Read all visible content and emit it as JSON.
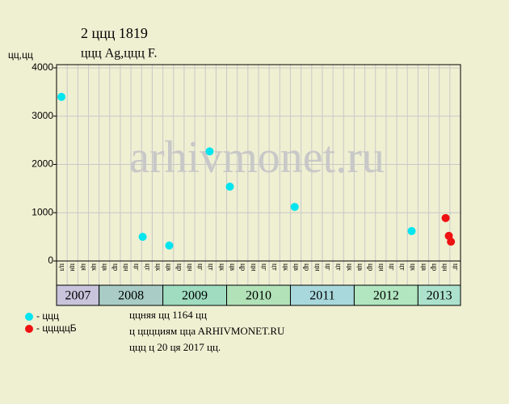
{
  "chart_data": {
    "type": "scatter",
    "title": "2 ццц 1819",
    "subtitle": "ццц Ag,ццц F.",
    "ylabel": "цц,цц",
    "watermark": "arhivmonet.ru",
    "ylim": [
      0,
      4000
    ],
    "yticks": [
      0,
      1000,
      2000,
      3000,
      4000
    ],
    "xlim": [
      0,
      38
    ],
    "grid": true,
    "months": [
      "цл",
      "цн",
      "ця",
      "цк",
      "цв",
      "цр",
      "цн",
      "цг",
      "цт",
      "цк",
      "цв",
      "цр",
      "цн",
      "цг",
      "цт",
      "цк",
      "цв",
      "цр",
      "цн",
      "цг",
      "цт",
      "цк",
      "цв",
      "цр",
      "цн",
      "цг",
      "цт",
      "цк",
      "цв",
      "цр",
      "цн",
      "цг",
      "цт",
      "цк",
      "цв",
      "цр",
      "цн",
      "цг"
    ],
    "years": [
      {
        "label": "2007",
        "columns": 4,
        "color": "#c9c3dc"
      },
      {
        "label": "2008",
        "columns": 6,
        "color": "#a9cdc6"
      },
      {
        "label": "2009",
        "columns": 6,
        "color": "#9fdcc0"
      },
      {
        "label": "2010",
        "columns": 6,
        "color": "#b1e2b8"
      },
      {
        "label": "2011",
        "columns": 6,
        "color": "#a8d8dc"
      },
      {
        "label": "2012",
        "columns": 6,
        "color": "#b1e6c0"
      },
      {
        "label": "2013",
        "columns": 4,
        "color": "#ace2cd"
      }
    ],
    "series": [
      {
        "name": "- ццц",
        "color": "#00e5ee",
        "x": [
          0.46,
          8.1,
          10.6,
          14.4,
          16.3,
          22.4,
          33.4
        ],
        "values": [
          3400,
          500,
          320,
          2270,
          1540,
          1120,
          620
        ]
      },
      {
        "name": "- цццццБ",
        "color": "#ee1111",
        "x": [
          36.6,
          36.9,
          37.1
        ],
        "values": [
          890,
          520,
          400
        ]
      }
    ],
    "notes": [
      "ццняя цц 1164 цц",
      "ц цццциям ццa ARHIVMONET.RU",
      "ццц ц 20 ця 2017 цц."
    ]
  }
}
